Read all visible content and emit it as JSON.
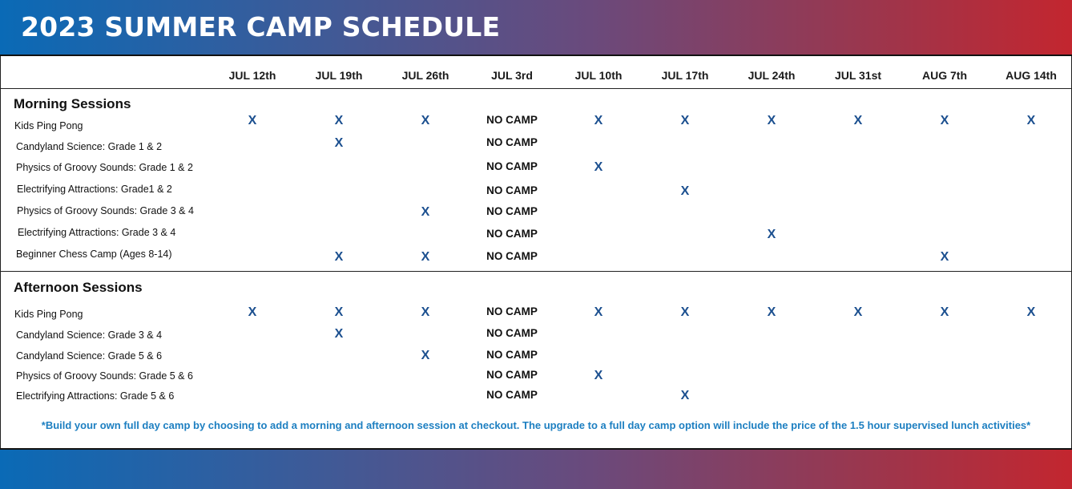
{
  "title": "2023 SUMMER CAMP SCHEDULE",
  "columns": [
    "JUL 12th",
    "JUL 19th",
    "JUL 26th",
    "JUL 3rd",
    "JUL 10th",
    "JUL 17th",
    "JUL 24th",
    "JUL 31st",
    "AUG 7th",
    "AUG 14th"
  ],
  "mark_text": "X",
  "sections": [
    {
      "title": "Morning Sessions",
      "rows": [
        {
          "label": "Kids Ping Pong",
          "cells": [
            "X",
            "X",
            "X",
            "NO CAMP",
            "X",
            "X",
            "X",
            "X",
            "X",
            "X"
          ]
        },
        {
          "label": "Candyland Science: Grade 1 & 2",
          "cells": [
            "",
            "X",
            "",
            "NO CAMP",
            "",
            "",
            "",
            "",
            "",
            ""
          ]
        },
        {
          "label": "Physics of Groovy Sounds: Grade 1 & 2",
          "cells": [
            "",
            "",
            "",
            "NO CAMP",
            "X",
            "",
            "",
            "",
            "",
            ""
          ]
        },
        {
          "label": "Electrifying Attractions: Grade1 & 2",
          "cells": [
            "",
            "",
            "",
            "NO CAMP",
            "",
            "X",
            "",
            "",
            "",
            ""
          ]
        },
        {
          "label": "Physics of Groovy Sounds: Grade 3 & 4",
          "cells": [
            "",
            "",
            "X",
            "NO CAMP",
            "",
            "",
            "",
            "",
            "",
            ""
          ]
        },
        {
          "label": "Electrifying Attractions: Grade 3 & 4",
          "cells": [
            "",
            "",
            "",
            "NO CAMP",
            "",
            "",
            "X",
            "",
            "",
            ""
          ]
        },
        {
          "label": "Beginner Chess Camp (Ages 8-14)",
          "cells": [
            "",
            "X",
            "X",
            "NO CAMP",
            "",
            "",
            "",
            "",
            "X",
            ""
          ]
        }
      ]
    },
    {
      "title": "Afternoon Sessions",
      "rows": [
        {
          "label": "Kids Ping Pong",
          "cells": [
            "X",
            "X",
            "X",
            "NO CAMP",
            "X",
            "X",
            "X",
            "X",
            "X",
            "X"
          ]
        },
        {
          "label": "Candyland Science: Grade 3 & 4",
          "cells": [
            "",
            "X",
            "",
            "NO CAMP",
            "",
            "",
            "",
            "",
            "",
            ""
          ]
        },
        {
          "label": "Candyland Science: Grade 5 & 6",
          "cells": [
            "",
            "",
            "X",
            "NO CAMP",
            "",
            "",
            "",
            "",
            "",
            ""
          ]
        },
        {
          "label": "Physics of Groovy Sounds: Grade 5 & 6",
          "cells": [
            "",
            "",
            "",
            "NO CAMP",
            "X",
            "",
            "",
            "",
            "",
            ""
          ]
        },
        {
          "label": "Electrifying Attractions: Grade 5 & 6",
          "cells": [
            "",
            "",
            "",
            "NO CAMP",
            "",
            "X",
            "",
            "",
            "",
            ""
          ]
        }
      ]
    }
  ],
  "footnote": "*Build your own full day camp by choosing to add a morning and afternoon session at checkout. The upgrade to a full day camp option will include the price of the 1.5 hour supervised lunch activities*",
  "colors": {
    "mark": "#1b4f8f",
    "note": "#1d7fc1",
    "gradient_start": "#0a6ab6",
    "gradient_end": "#c3262f"
  }
}
